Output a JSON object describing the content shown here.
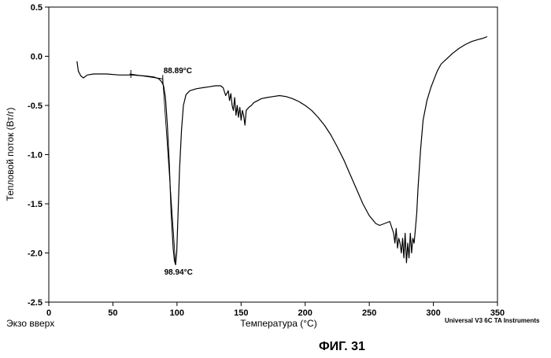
{
  "chart_data": {
    "type": "line",
    "title": "",
    "xlabel": "Температура (°C)",
    "ylabel": "Тепловой поток (Вт/г)",
    "xlim": [
      0,
      350
    ],
    "ylim": [
      -2.5,
      0.5
    ],
    "x_ticks": [
      0,
      50,
      100,
      150,
      200,
      250,
      300,
      350
    ],
    "y_ticks": [
      0.5,
      0.0,
      -0.5,
      -1.0,
      -1.5,
      -2.0,
      -2.5
    ],
    "x_tick_labels": [
      "0",
      "50",
      "100",
      "150",
      "200",
      "250",
      "300",
      "350"
    ],
    "y_tick_labels": [
      "0.5",
      "0.0",
      "-0.5",
      "-1.0",
      "-1.5",
      "-2.0",
      "-2.5"
    ],
    "grid": false,
    "series": [
      {
        "x": [
          22,
          23,
          25,
          27,
          30,
          35,
          45,
          55,
          65,
          75,
          82,
          86,
          88,
          89.5,
          91,
          92.5,
          94,
          95.5,
          97,
          98,
          98.94,
          99.8,
          100.8,
          102,
          103.5,
          105,
          107,
          110,
          115,
          120,
          125,
          130,
          134,
          136,
          138,
          140,
          141,
          142,
          143,
          144,
          145,
          146,
          147,
          148,
          149,
          150,
          151,
          152,
          153,
          154,
          156,
          158,
          160,
          163,
          166,
          170,
          175,
          180,
          185,
          190,
          195,
          200,
          205,
          210,
          215,
          220,
          225,
          230,
          235,
          240,
          245,
          250,
          255,
          258,
          262,
          266,
          269,
          270,
          271,
          272,
          273,
          274,
          275,
          276,
          277,
          278,
          279,
          280,
          281,
          282,
          283,
          284,
          285,
          286,
          287,
          288,
          290,
          292,
          295,
          298,
          300,
          303,
          306,
          310,
          315,
          320,
          325,
          330,
          335,
          338,
          340,
          342
        ],
        "y": [
          -0.05,
          -0.15,
          -0.2,
          -0.22,
          -0.19,
          -0.18,
          -0.18,
          -0.19,
          -0.19,
          -0.2,
          -0.21,
          -0.23,
          -0.26,
          -0.3,
          -0.42,
          -0.7,
          -1.1,
          -1.6,
          -1.95,
          -2.08,
          -2.12,
          -2.0,
          -1.6,
          -1.15,
          -0.75,
          -0.5,
          -0.39,
          -0.35,
          -0.33,
          -0.32,
          -0.31,
          -0.3,
          -0.3,
          -0.32,
          -0.4,
          -0.35,
          -0.45,
          -0.38,
          -0.5,
          -0.55,
          -0.42,
          -0.6,
          -0.5,
          -0.62,
          -0.52,
          -0.65,
          -0.55,
          -0.6,
          -0.7,
          -0.55,
          -0.52,
          -0.5,
          -0.47,
          -0.45,
          -0.43,
          -0.42,
          -0.41,
          -0.4,
          -0.41,
          -0.43,
          -0.46,
          -0.5,
          -0.55,
          -0.62,
          -0.7,
          -0.8,
          -0.92,
          -1.05,
          -1.2,
          -1.35,
          -1.5,
          -1.62,
          -1.7,
          -1.72,
          -1.7,
          -1.68,
          -1.8,
          -1.9,
          -1.75,
          -1.95,
          -1.85,
          -1.9,
          -2.0,
          -1.85,
          -2.05,
          -1.8,
          -2.1,
          -1.9,
          -2.05,
          -1.8,
          -2.0,
          -1.85,
          -1.9,
          -1.75,
          -1.6,
          -1.35,
          -0.95,
          -0.65,
          -0.45,
          -0.32,
          -0.25,
          -0.15,
          -0.08,
          -0.03,
          0.03,
          0.08,
          0.12,
          0.15,
          0.17,
          0.18,
          0.19,
          0.2
        ]
      }
    ],
    "onset_tangent": {
      "x": [
        63,
        88.9
      ],
      "y": [
        -0.18,
        -0.23
      ]
    },
    "onset_steep": {
      "x": [
        88.9,
        98.94
      ],
      "y": [
        -0.23,
        -2.12
      ]
    },
    "tick_marks": [
      {
        "x": 64,
        "y": -0.18
      },
      {
        "x": 88.9,
        "y": -0.23
      }
    ],
    "annotations": [
      {
        "text": "88.89°C",
        "x": 89.5,
        "y": -0.17
      },
      {
        "text": "98.94°C",
        "x": 90,
        "y": -2.22
      }
    ]
  },
  "footer": {
    "left_label": "Экзо вверх",
    "software": "Universal V3 6C TA Instruments",
    "figure_caption": "ФИГ. 31"
  }
}
